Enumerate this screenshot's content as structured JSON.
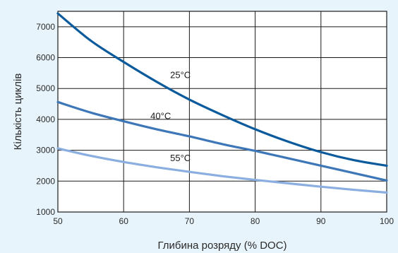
{
  "chart_data": {
    "type": "line",
    "title": "",
    "xlabel": "Глибина розряду (% DOC)",
    "ylabel": "Кількість циклів",
    "xlim": [
      50,
      100
    ],
    "ylim": [
      1000,
      7500
    ],
    "xticks": [
      50,
      60,
      70,
      80,
      90,
      100
    ],
    "yticks": [
      1000,
      2000,
      3000,
      4000,
      5000,
      6000,
      7000
    ],
    "grid": true,
    "series": [
      {
        "name": "25°C",
        "color": "#0a5a9c",
        "x": [
          50,
          55,
          60,
          65,
          70,
          75,
          80,
          85,
          90,
          95,
          100
        ],
        "y": [
          7430,
          6550,
          5860,
          5220,
          4640,
          4140,
          3680,
          3280,
          2940,
          2680,
          2500
        ]
      },
      {
        "name": "40°C",
        "color": "#3d77b8",
        "x": [
          50,
          55,
          60,
          65,
          70,
          75,
          80,
          85,
          90,
          95,
          100
        ],
        "y": [
          4560,
          4220,
          3940,
          3680,
          3450,
          3200,
          2980,
          2740,
          2500,
          2260,
          2020
        ]
      },
      {
        "name": "55°C",
        "color": "#8aaee0",
        "x": [
          50,
          55,
          60,
          65,
          70,
          75,
          80,
          85,
          90,
          95,
          100
        ],
        "y": [
          3060,
          2820,
          2620,
          2450,
          2300,
          2160,
          2040,
          1930,
          1820,
          1720,
          1630
        ]
      }
    ]
  }
}
